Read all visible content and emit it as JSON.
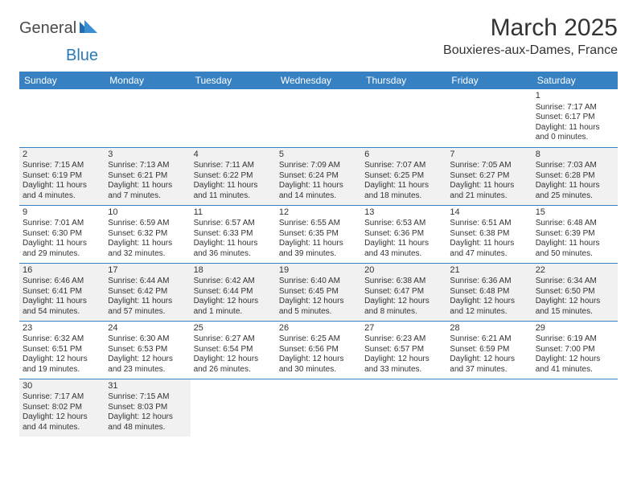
{
  "logo": {
    "text1": "General",
    "text2": "Blue"
  },
  "title": "March 2025",
  "location": "Bouxieres-aux-Dames, France",
  "colors": {
    "header_bg": "#3781c2",
    "header_text": "#ffffff",
    "shade_bg": "#eeeeee",
    "border": "#3781c2",
    "logo_blue": "#2a7ab8",
    "logo_gray": "#4a4a4a"
  },
  "day_headers": [
    "Sunday",
    "Monday",
    "Tuesday",
    "Wednesday",
    "Thursday",
    "Friday",
    "Saturday"
  ],
  "weeks": [
    {
      "shade": false,
      "days": [
        null,
        null,
        null,
        null,
        null,
        null,
        {
          "n": "1",
          "sunrise": "Sunrise: 7:17 AM",
          "sunset": "Sunset: 6:17 PM",
          "daylight": "Daylight: 11 hours and 0 minutes."
        }
      ]
    },
    {
      "shade": true,
      "days": [
        {
          "n": "2",
          "sunrise": "Sunrise: 7:15 AM",
          "sunset": "Sunset: 6:19 PM",
          "daylight": "Daylight: 11 hours and 4 minutes."
        },
        {
          "n": "3",
          "sunrise": "Sunrise: 7:13 AM",
          "sunset": "Sunset: 6:21 PM",
          "daylight": "Daylight: 11 hours and 7 minutes."
        },
        {
          "n": "4",
          "sunrise": "Sunrise: 7:11 AM",
          "sunset": "Sunset: 6:22 PM",
          "daylight": "Daylight: 11 hours and 11 minutes."
        },
        {
          "n": "5",
          "sunrise": "Sunrise: 7:09 AM",
          "sunset": "Sunset: 6:24 PM",
          "daylight": "Daylight: 11 hours and 14 minutes."
        },
        {
          "n": "6",
          "sunrise": "Sunrise: 7:07 AM",
          "sunset": "Sunset: 6:25 PM",
          "daylight": "Daylight: 11 hours and 18 minutes."
        },
        {
          "n": "7",
          "sunrise": "Sunrise: 7:05 AM",
          "sunset": "Sunset: 6:27 PM",
          "daylight": "Daylight: 11 hours and 21 minutes."
        },
        {
          "n": "8",
          "sunrise": "Sunrise: 7:03 AM",
          "sunset": "Sunset: 6:28 PM",
          "daylight": "Daylight: 11 hours and 25 minutes."
        }
      ]
    },
    {
      "shade": false,
      "days": [
        {
          "n": "9",
          "sunrise": "Sunrise: 7:01 AM",
          "sunset": "Sunset: 6:30 PM",
          "daylight": "Daylight: 11 hours and 29 minutes."
        },
        {
          "n": "10",
          "sunrise": "Sunrise: 6:59 AM",
          "sunset": "Sunset: 6:32 PM",
          "daylight": "Daylight: 11 hours and 32 minutes."
        },
        {
          "n": "11",
          "sunrise": "Sunrise: 6:57 AM",
          "sunset": "Sunset: 6:33 PM",
          "daylight": "Daylight: 11 hours and 36 minutes."
        },
        {
          "n": "12",
          "sunrise": "Sunrise: 6:55 AM",
          "sunset": "Sunset: 6:35 PM",
          "daylight": "Daylight: 11 hours and 39 minutes."
        },
        {
          "n": "13",
          "sunrise": "Sunrise: 6:53 AM",
          "sunset": "Sunset: 6:36 PM",
          "daylight": "Daylight: 11 hours and 43 minutes."
        },
        {
          "n": "14",
          "sunrise": "Sunrise: 6:51 AM",
          "sunset": "Sunset: 6:38 PM",
          "daylight": "Daylight: 11 hours and 47 minutes."
        },
        {
          "n": "15",
          "sunrise": "Sunrise: 6:48 AM",
          "sunset": "Sunset: 6:39 PM",
          "daylight": "Daylight: 11 hours and 50 minutes."
        }
      ]
    },
    {
      "shade": true,
      "days": [
        {
          "n": "16",
          "sunrise": "Sunrise: 6:46 AM",
          "sunset": "Sunset: 6:41 PM",
          "daylight": "Daylight: 11 hours and 54 minutes."
        },
        {
          "n": "17",
          "sunrise": "Sunrise: 6:44 AM",
          "sunset": "Sunset: 6:42 PM",
          "daylight": "Daylight: 11 hours and 57 minutes."
        },
        {
          "n": "18",
          "sunrise": "Sunrise: 6:42 AM",
          "sunset": "Sunset: 6:44 PM",
          "daylight": "Daylight: 12 hours and 1 minute."
        },
        {
          "n": "19",
          "sunrise": "Sunrise: 6:40 AM",
          "sunset": "Sunset: 6:45 PM",
          "daylight": "Daylight: 12 hours and 5 minutes."
        },
        {
          "n": "20",
          "sunrise": "Sunrise: 6:38 AM",
          "sunset": "Sunset: 6:47 PM",
          "daylight": "Daylight: 12 hours and 8 minutes."
        },
        {
          "n": "21",
          "sunrise": "Sunrise: 6:36 AM",
          "sunset": "Sunset: 6:48 PM",
          "daylight": "Daylight: 12 hours and 12 minutes."
        },
        {
          "n": "22",
          "sunrise": "Sunrise: 6:34 AM",
          "sunset": "Sunset: 6:50 PM",
          "daylight": "Daylight: 12 hours and 15 minutes."
        }
      ]
    },
    {
      "shade": false,
      "days": [
        {
          "n": "23",
          "sunrise": "Sunrise: 6:32 AM",
          "sunset": "Sunset: 6:51 PM",
          "daylight": "Daylight: 12 hours and 19 minutes."
        },
        {
          "n": "24",
          "sunrise": "Sunrise: 6:30 AM",
          "sunset": "Sunset: 6:53 PM",
          "daylight": "Daylight: 12 hours and 23 minutes."
        },
        {
          "n": "25",
          "sunrise": "Sunrise: 6:27 AM",
          "sunset": "Sunset: 6:54 PM",
          "daylight": "Daylight: 12 hours and 26 minutes."
        },
        {
          "n": "26",
          "sunrise": "Sunrise: 6:25 AM",
          "sunset": "Sunset: 6:56 PM",
          "daylight": "Daylight: 12 hours and 30 minutes."
        },
        {
          "n": "27",
          "sunrise": "Sunrise: 6:23 AM",
          "sunset": "Sunset: 6:57 PM",
          "daylight": "Daylight: 12 hours and 33 minutes."
        },
        {
          "n": "28",
          "sunrise": "Sunrise: 6:21 AM",
          "sunset": "Sunset: 6:59 PM",
          "daylight": "Daylight: 12 hours and 37 minutes."
        },
        {
          "n": "29",
          "sunrise": "Sunrise: 6:19 AM",
          "sunset": "Sunset: 7:00 PM",
          "daylight": "Daylight: 12 hours and 41 minutes."
        }
      ]
    },
    {
      "shade": true,
      "days": [
        {
          "n": "30",
          "sunrise": "Sunrise: 7:17 AM",
          "sunset": "Sunset: 8:02 PM",
          "daylight": "Daylight: 12 hours and 44 minutes."
        },
        {
          "n": "31",
          "sunrise": "Sunrise: 7:15 AM",
          "sunset": "Sunset: 8:03 PM",
          "daylight": "Daylight: 12 hours and 48 minutes."
        },
        null,
        null,
        null,
        null,
        null
      ]
    }
  ]
}
